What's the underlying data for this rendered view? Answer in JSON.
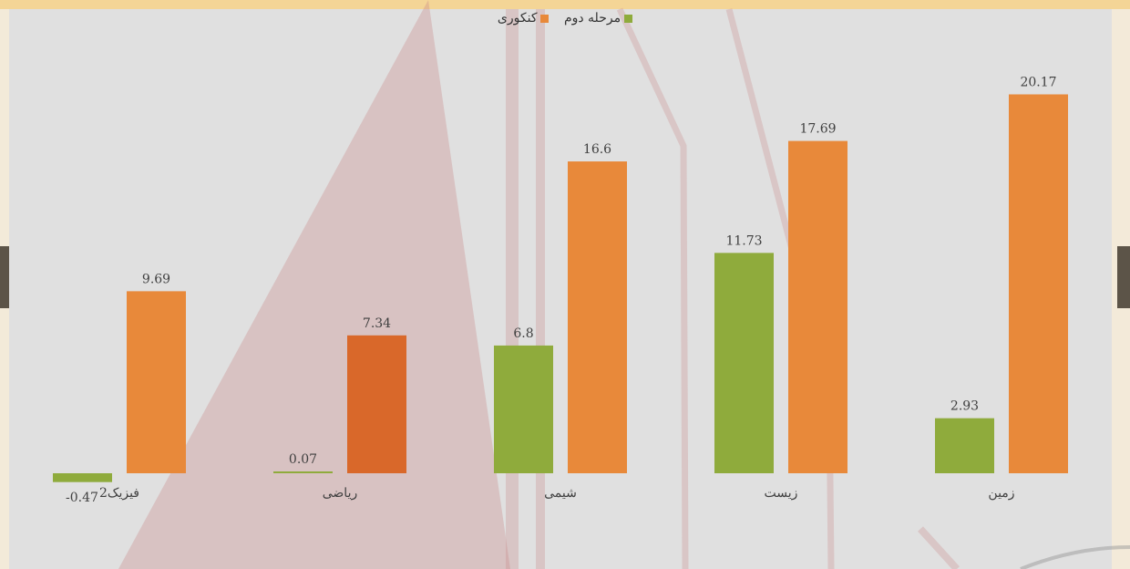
{
  "colors": {
    "series_1": "#8fab3c",
    "series_2": "#e8893a",
    "highlight": "#d9682a"
  },
  "chart_data": {
    "type": "bar",
    "categories": [
      "فیزیک2",
      "ریاضی",
      "شیمی",
      "زیست",
      "زمین"
    ],
    "series": [
      {
        "name": "مرحله دوم",
        "values": [
          -0.47,
          0.07,
          6.8,
          11.73,
          2.93
        ],
        "labels": [
          "-0.47",
          "0.07",
          "6.8",
          "11.73",
          "2.93"
        ]
      },
      {
        "name": "کنکوری",
        "values": [
          9.69,
          7.34,
          16.6,
          17.69,
          20.17
        ],
        "labels": [
          "9.69",
          "7.34",
          "16.6",
          "17.69",
          "20.17"
        ]
      }
    ],
    "ylim": [
      -1,
      25
    ],
    "grid": false,
    "legend": "top-center",
    "axis_line": false
  }
}
